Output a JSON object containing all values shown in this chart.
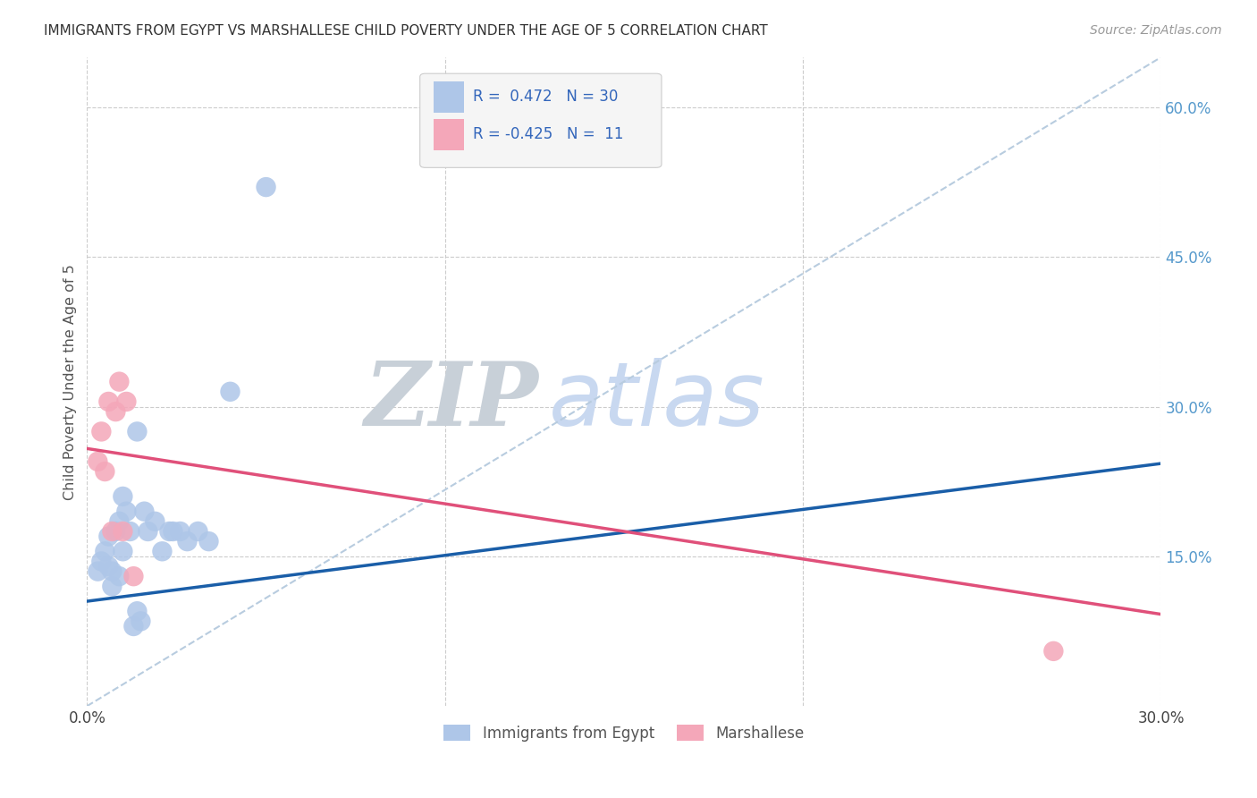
{
  "title": "IMMIGRANTS FROM EGYPT VS MARSHALLESE CHILD POVERTY UNDER THE AGE OF 5 CORRELATION CHART",
  "source": "Source: ZipAtlas.com",
  "ylabel": "Child Poverty Under the Age of 5",
  "right_yticks": [
    "60.0%",
    "45.0%",
    "30.0%",
    "15.0%"
  ],
  "right_ytick_vals": [
    0.6,
    0.45,
    0.3,
    0.15
  ],
  "xlim": [
    0.0,
    0.3
  ],
  "ylim": [
    0.0,
    0.65
  ],
  "legend1_label": "Immigrants from Egypt",
  "legend2_label": "Marshallese",
  "R1": 0.472,
  "N1": 30,
  "R2": -0.425,
  "N2": 11,
  "blue_color": "#aec6e8",
  "pink_color": "#f4a7b9",
  "blue_line_color": "#1a5ea8",
  "pink_line_color": "#e0507a",
  "diag_line_color": "#b8ccdf",
  "watermark_zip_color": "#c8d8e8",
  "watermark_atlas_color": "#d0dff0",
  "background_color": "#ffffff",
  "blue_scatter": [
    [
      0.003,
      0.135
    ],
    [
      0.004,
      0.145
    ],
    [
      0.005,
      0.155
    ],
    [
      0.006,
      0.14
    ],
    [
      0.006,
      0.17
    ],
    [
      0.007,
      0.135
    ],
    [
      0.007,
      0.12
    ],
    [
      0.008,
      0.175
    ],
    [
      0.009,
      0.185
    ],
    [
      0.009,
      0.13
    ],
    [
      0.01,
      0.155
    ],
    [
      0.01,
      0.21
    ],
    [
      0.011,
      0.195
    ],
    [
      0.012,
      0.175
    ],
    [
      0.013,
      0.08
    ],
    [
      0.014,
      0.275
    ],
    [
      0.014,
      0.095
    ],
    [
      0.015,
      0.085
    ],
    [
      0.016,
      0.195
    ],
    [
      0.017,
      0.175
    ],
    [
      0.019,
      0.185
    ],
    [
      0.021,
      0.155
    ],
    [
      0.023,
      0.175
    ],
    [
      0.024,
      0.175
    ],
    [
      0.026,
      0.175
    ],
    [
      0.028,
      0.165
    ],
    [
      0.031,
      0.175
    ],
    [
      0.034,
      0.165
    ],
    [
      0.04,
      0.315
    ],
    [
      0.05,
      0.52
    ]
  ],
  "pink_scatter": [
    [
      0.003,
      0.245
    ],
    [
      0.004,
      0.275
    ],
    [
      0.005,
      0.235
    ],
    [
      0.006,
      0.305
    ],
    [
      0.007,
      0.175
    ],
    [
      0.008,
      0.295
    ],
    [
      0.009,
      0.325
    ],
    [
      0.01,
      0.175
    ],
    [
      0.011,
      0.305
    ],
    [
      0.013,
      0.13
    ],
    [
      0.27,
      0.055
    ]
  ],
  "blue_line_x": [
    0.0,
    0.5
  ],
  "blue_line_y": [
    0.105,
    0.335
  ],
  "pink_line_x": [
    0.0,
    0.3
  ],
  "pink_line_y": [
    0.258,
    0.092
  ],
  "diag_line_x": [
    0.0,
    0.3
  ],
  "diag_line_y": [
    0.0,
    0.65
  ]
}
